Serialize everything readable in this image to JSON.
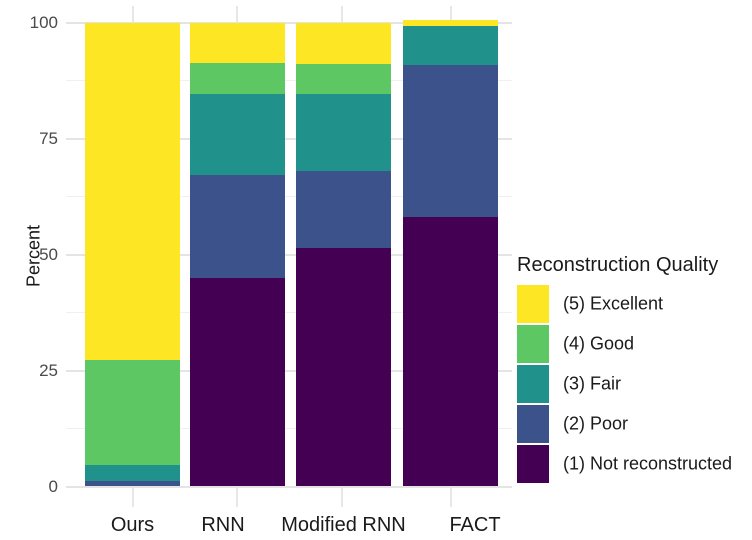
{
  "figure": {
    "y_axis_title": "Percent"
  },
  "legend": {
    "title": "Reconstruction Quality",
    "position": "right",
    "items_top_to_bottom": [
      "(5) Excellent",
      "(4) Good",
      "(3) Fair",
      "(2) Poor",
      "(1) Not reconstructed"
    ]
  },
  "chart_data": {
    "type": "bar",
    "stacking": "percent",
    "orientation": "vertical",
    "title": "",
    "xlabel": "",
    "ylabel": "Percent",
    "ylim": [
      0,
      100
    ],
    "y_ticks": [
      0,
      25,
      50,
      75,
      100
    ],
    "grid": "on",
    "legend_position": "right",
    "categories": [
      "Ours",
      "RNN",
      "Modified RNN",
      "FACT"
    ],
    "series": [
      {
        "name": "(1) Not reconstructed",
        "color": "#440154",
        "values": [
          0,
          44.9,
          51.5,
          58.1
        ]
      },
      {
        "name": "(2) Poor",
        "color": "#3B528B",
        "values": [
          1.2,
          22.3,
          16.5,
          32.7
        ]
      },
      {
        "name": "(3) Fair",
        "color": "#21918C",
        "values": [
          3.4,
          17.4,
          16.6,
          8.5
        ]
      },
      {
        "name": "(4) Good",
        "color": "#5DC863",
        "values": [
          22.7,
          6.7,
          6.6,
          0
        ]
      },
      {
        "name": "(5) Excellent",
        "color": "#FDE725",
        "values": [
          72.7,
          8.7,
          8.8,
          1.3
        ]
      }
    ]
  }
}
